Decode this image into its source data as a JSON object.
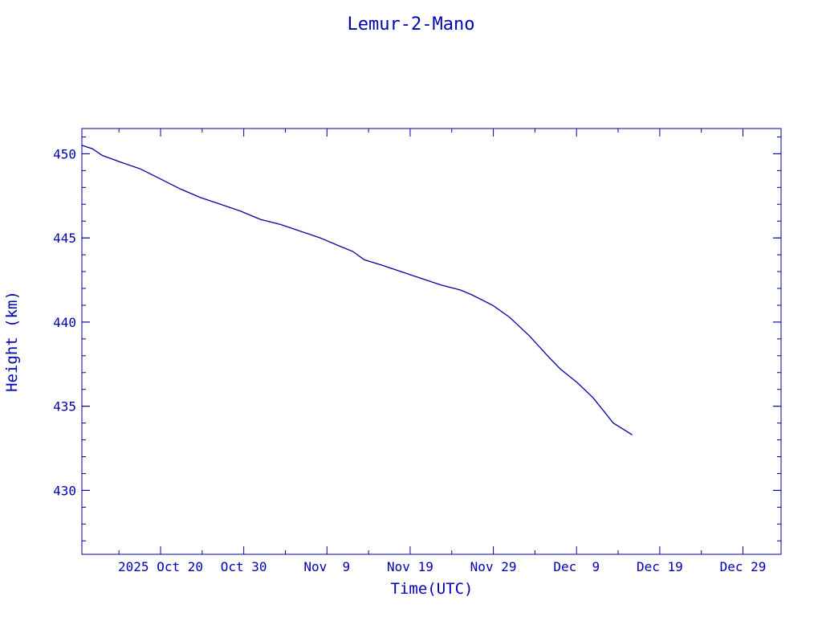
{
  "chart_data": {
    "type": "line",
    "title": "Lemur-2-Mano",
    "xlabel": "Time(UTC)",
    "ylabel": "Height (km)",
    "xlim": [
      "2025-10-10T13:00Z",
      "2026-01-02T14:00Z"
    ],
    "ylim": [
      426.2,
      451.5
    ],
    "x_ticks": [
      {
        "date": "2025-10-20T00:00Z",
        "label": "2025 Oct 20"
      },
      {
        "date": "2025-10-30T00:00Z",
        "label": "Oct 30"
      },
      {
        "date": "2025-11-09T00:00Z",
        "label": "Nov  9"
      },
      {
        "date": "2025-11-19T00:00Z",
        "label": "Nov 19"
      },
      {
        "date": "2025-11-29T00:00Z",
        "label": "Nov 29"
      },
      {
        "date": "2025-12-09T00:00Z",
        "label": "Dec  9"
      },
      {
        "date": "2025-12-19T00:00Z",
        "label": "Dec 19"
      },
      {
        "date": "2025-12-29T00:00Z",
        "label": "Dec 29"
      }
    ],
    "y_ticks": [
      {
        "value": 430,
        "label": "430"
      },
      {
        "value": 435,
        "label": "435"
      },
      {
        "value": 440,
        "label": "440"
      },
      {
        "value": 445,
        "label": "445"
      },
      {
        "value": 450,
        "label": "450"
      }
    ],
    "grid": false,
    "color": "#0000a0",
    "series": [
      {
        "x": [
          "2025-10-10T13:00Z",
          "2025-10-11T19:00Z",
          "2025-10-13T00:00Z",
          "2025-10-15T05:00Z",
          "2025-10-17T14:00Z",
          "2025-10-20T00:00Z",
          "2025-10-22T10:00Z",
          "2025-10-24T19:00Z",
          "2025-10-27T05:00Z",
          "2025-10-29T14:00Z",
          "2025-11-01T00:00Z",
          "2025-11-03T10:00Z",
          "2025-11-05T19:00Z",
          "2025-11-08T05:00Z",
          "2025-11-10T14:00Z",
          "2025-11-12T02:00Z",
          "2025-11-13T12:00Z",
          "2025-11-15T12:00Z",
          "2025-11-17T22:00Z",
          "2025-11-20T07:00Z",
          "2025-11-22T17:00Z",
          "2025-11-25T02:00Z",
          "2025-11-26T12:00Z",
          "2025-11-28T22:00Z",
          "2025-11-30T22:00Z",
          "2025-12-03T07:00Z",
          "2025-12-05T17:00Z",
          "2025-12-07T02:00Z",
          "2025-12-09T02:00Z",
          "2025-12-11T00:00Z",
          "2025-12-13T10:00Z",
          "2025-12-15T17:00Z"
        ],
        "y": [
          450.5,
          450.3,
          449.9,
          449.5,
          449.1,
          448.5,
          447.9,
          447.4,
          447.0,
          446.6,
          446.1,
          445.8,
          445.4,
          445.0,
          444.5,
          444.2,
          443.7,
          443.4,
          443.0,
          442.6,
          442.2,
          441.9,
          441.6,
          441.0,
          440.3,
          439.2,
          437.9,
          437.2,
          436.4,
          435.5,
          434.0,
          433.3
        ]
      }
    ]
  }
}
